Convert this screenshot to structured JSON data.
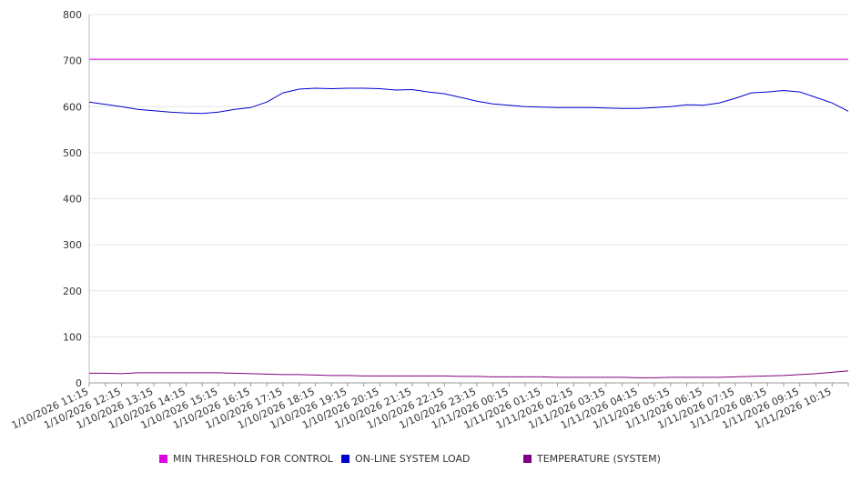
{
  "chart_data": {
    "type": "line",
    "title": "",
    "xlabel": "",
    "ylabel": "",
    "ylim": [
      0,
      800
    ],
    "yticks": [
      0,
      100,
      200,
      300,
      400,
      500,
      600,
      700,
      800
    ],
    "grid": true,
    "legend_position": "bottom",
    "x_tick_labels": [
      "1/10/2026 11:15",
      "1/10/2026 12:15",
      "1/10/2026 13:15",
      "1/10/2026 14:15",
      "1/10/2026 15:15",
      "1/10/2026 16:15",
      "1/10/2026 17:15",
      "1/10/2026 18:15",
      "1/10/2026 19:15",
      "1/10/2026 20:15",
      "1/10/2026 21:15",
      "1/10/2026 22:15",
      "1/10/2026 23:15",
      "1/11/2026 00:15",
      "1/11/2026 01:15",
      "1/11/2026 02:15",
      "1/11/2026 03:15",
      "1/11/2026 04:15",
      "1/11/2026 05:15",
      "1/11/2026 06:15",
      "1/11/2026 07:15",
      "1/11/2026 08:15",
      "1/11/2026 09:15",
      "1/11/2026 10:15"
    ],
    "x": [
      "1/10/2026 11:15",
      "1/10/2026 11:45",
      "1/10/2026 12:15",
      "1/10/2026 12:45",
      "1/10/2026 13:15",
      "1/10/2026 13:45",
      "1/10/2026 14:15",
      "1/10/2026 14:45",
      "1/10/2026 15:15",
      "1/10/2026 15:45",
      "1/10/2026 16:15",
      "1/10/2026 16:45",
      "1/10/2026 17:15",
      "1/10/2026 17:45",
      "1/10/2026 18:15",
      "1/10/2026 18:45",
      "1/10/2026 19:15",
      "1/10/2026 19:45",
      "1/10/2026 20:15",
      "1/10/2026 20:45",
      "1/10/2026 21:15",
      "1/10/2026 21:45",
      "1/10/2026 22:15",
      "1/10/2026 22:45",
      "1/10/2026 23:15",
      "1/10/2026 23:45",
      "1/11/2026 00:15",
      "1/11/2026 00:45",
      "1/11/2026 01:15",
      "1/11/2026 01:45",
      "1/11/2026 02:15",
      "1/11/2026 02:45",
      "1/11/2026 03:15",
      "1/11/2026 03:45",
      "1/11/2026 04:15",
      "1/11/2026 04:45",
      "1/11/2026 05:15",
      "1/11/2026 05:45",
      "1/11/2026 06:15",
      "1/11/2026 06:45",
      "1/11/2026 07:15",
      "1/11/2026 07:45",
      "1/11/2026 08:15",
      "1/11/2026 08:45",
      "1/11/2026 09:15",
      "1/11/2026 09:45",
      "1/11/2026 10:15",
      "1/11/2026 10:45"
    ],
    "series": [
      {
        "name": "MIN THRESHOLD FOR CONTROL",
        "color": "#e000e0",
        "values": [
          703,
          703,
          703,
          703,
          703,
          703,
          703,
          703,
          703,
          703,
          703,
          703,
          703,
          703,
          703,
          703,
          703,
          703,
          703,
          703,
          703,
          703,
          703,
          703,
          703,
          703,
          703,
          703,
          703,
          703,
          703,
          703,
          703,
          703,
          703,
          703,
          703,
          703,
          703,
          703,
          703,
          703,
          703,
          703,
          703,
          703,
          703,
          703
        ]
      },
      {
        "name": "ON-LINE SYSTEM LOAD",
        "color": "#0000d0",
        "values": [
          610,
          605,
          600,
          594,
          591,
          588,
          586,
          585,
          588,
          594,
          598,
          610,
          630,
          638,
          640,
          639,
          640,
          640,
          639,
          636,
          637,
          632,
          628,
          620,
          612,
          606,
          603,
          600,
          599,
          598,
          598,
          598,
          597,
          596,
          596,
          598,
          600,
          604,
          603,
          608,
          618,
          630,
          632,
          635,
          632,
          620,
          608,
          590
        ]
      },
      {
        "name": "TEMPERATURE (SYSTEM)",
        "color": "#800080",
        "values": [
          21,
          21,
          20,
          22,
          22,
          22,
          22,
          22,
          22,
          21,
          20,
          19,
          18,
          18,
          17,
          16,
          16,
          15,
          15,
          15,
          15,
          15,
          15,
          14,
          14,
          13,
          13,
          13,
          13,
          12,
          12,
          12,
          12,
          12,
          11,
          11,
          12,
          12,
          12,
          12,
          13,
          14,
          15,
          16,
          18,
          20,
          23,
          26
        ]
      }
    ]
  }
}
